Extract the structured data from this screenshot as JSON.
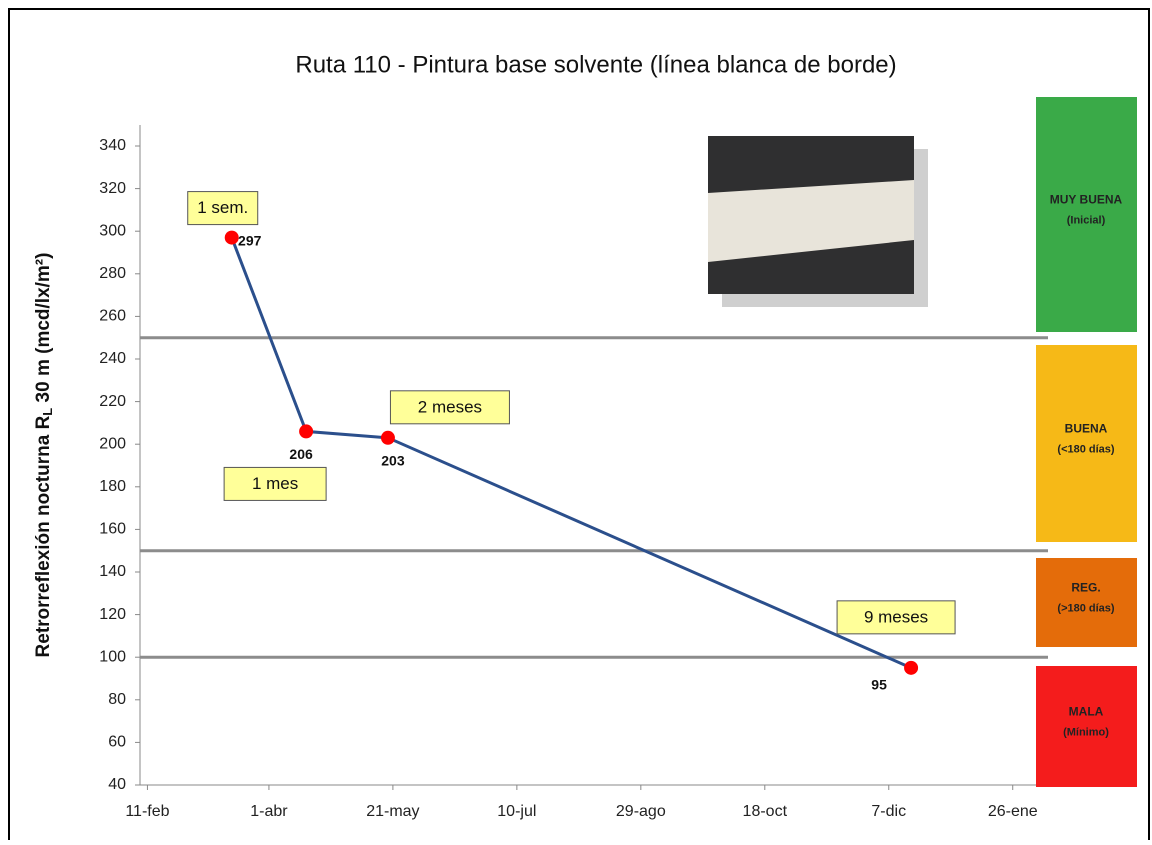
{
  "chart_data": {
    "type": "line",
    "title": "Ruta 110 - Pintura base solvente (línea blanca de borde)",
    "y_label_parts": [
      "Retrorreflexión nocturna R",
      "L",
      " 30 m (mcd/lx/m²)"
    ],
    "x": [
      34,
      64,
      97,
      308
    ],
    "series": [
      {
        "color": "#2b4f8c",
        "marker_color": "#ff0000",
        "values": [
          297,
          206,
          203,
          95
        ]
      }
    ],
    "point_labels": [
      "1 sem.",
      "1 mes",
      "2 meses",
      "9 meses"
    ],
    "xlim": [
      -3,
      360
    ],
    "xticks": [
      {
        "value": 0,
        "label": "11-feb"
      },
      {
        "value": 49,
        "label": "1-abr"
      },
      {
        "value": 99,
        "label": "21-may"
      },
      {
        "value": 149,
        "label": "10-jul"
      },
      {
        "value": 199,
        "label": "29-ago"
      },
      {
        "value": 249,
        "label": "18-oct"
      },
      {
        "value": 299,
        "label": "7-dic"
      },
      {
        "value": 349,
        "label": "26-ene"
      }
    ],
    "ylim": [
      40,
      340
    ],
    "yticks": [
      40,
      60,
      80,
      100,
      120,
      140,
      160,
      180,
      200,
      220,
      240,
      260,
      280,
      300,
      320,
      340
    ],
    "reference_lines": [
      250,
      150,
      100
    ],
    "bands": [
      {
        "label": "MUY BUENA",
        "note": "(Inicial)",
        "color": "#3aaa48"
      },
      {
        "label": "BUENA",
        "note": "(<180 días)",
        "color": "#f6b917"
      },
      {
        "label": "REG.",
        "note": "(>180 días)",
        "color": "#e46c0a"
      },
      {
        "label": "MALA",
        "note": "(Mínimo)",
        "color": "#f41c1c"
      }
    ]
  }
}
